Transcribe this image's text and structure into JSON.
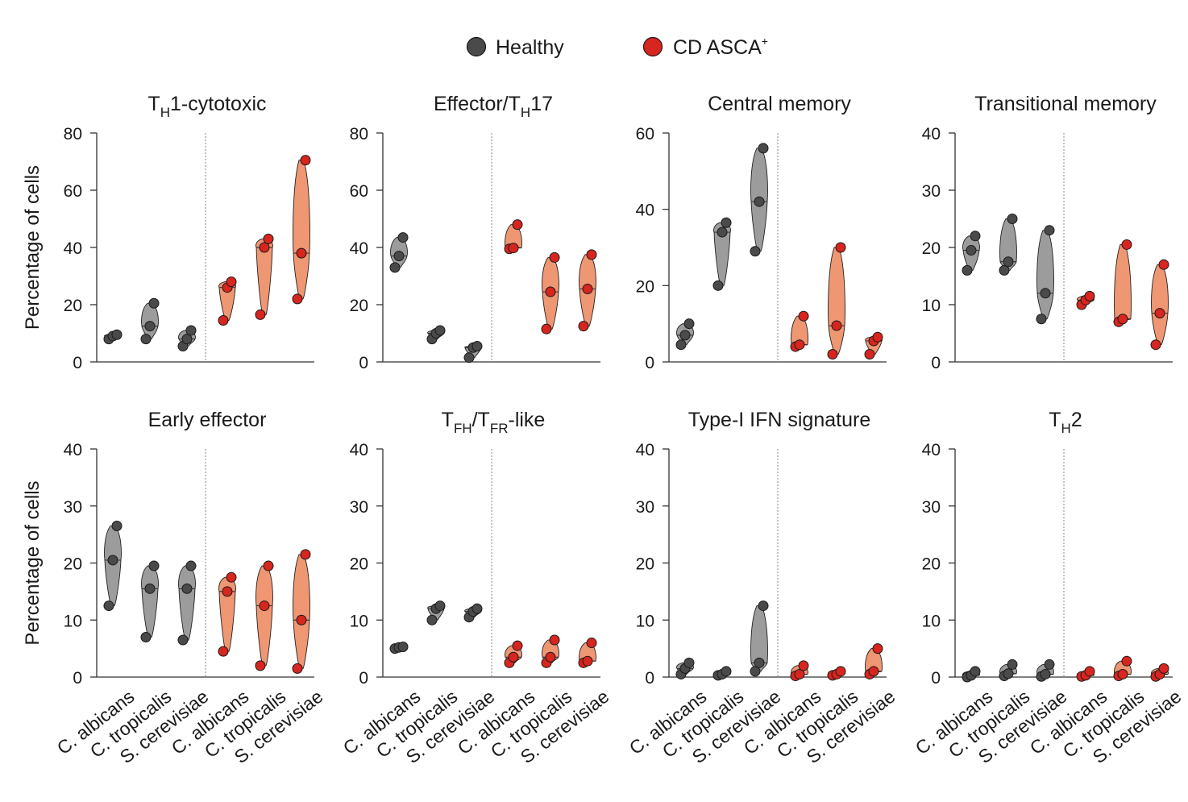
{
  "legend": {
    "healthy_label": "Healthy",
    "cd_label": "CD ASCA",
    "cd_sup": "+",
    "healthy_color": "#4a4a4a",
    "cd_color": "#d7251f"
  },
  "colors": {
    "healthy_fill": "#9c9c9c",
    "cd_fill": "#ef9673",
    "axis": "#333333",
    "divider": "#888888"
  },
  "chart_data": [
    {
      "type": "violin",
      "title_main": "T",
      "title_sub": "H",
      "title_rest": "1-cytotoxic",
      "ylabel": "Percentage of cells",
      "ylim": [
        0,
        80
      ],
      "yticks": [
        0,
        20,
        40,
        60,
        80
      ],
      "groups": [
        "Healthy",
        "CD ASCA+"
      ],
      "categories": [
        "C. albicans",
        "C. tropicalis",
        "S. cerevisiae"
      ],
      "series": [
        {
          "name": "Healthy",
          "values": [
            [
              8,
              9,
              9.5
            ],
            [
              8,
              12.5,
              20.5
            ],
            [
              5.5,
              8,
              11
            ]
          ]
        },
        {
          "name": "CD ASCA+",
          "values": [
            [
              14.5,
              26,
              28
            ],
            [
              16.5,
              40,
              43
            ],
            [
              22,
              38,
              70.5
            ]
          ]
        }
      ]
    },
    {
      "type": "violin",
      "title_main": "Effector/T",
      "title_sub": "H",
      "title_rest": "17",
      "ylabel": "",
      "ylim": [
        0,
        80
      ],
      "yticks": [
        0,
        20,
        40,
        60,
        80
      ],
      "groups": [
        "Healthy",
        "CD ASCA+"
      ],
      "categories": [
        "C. albicans",
        "C. tropicalis",
        "S. cerevisiae"
      ],
      "series": [
        {
          "name": "Healthy",
          "values": [
            [
              33,
              37,
              43.5
            ],
            [
              8,
              10,
              11
            ],
            [
              1.5,
              5,
              5.5
            ]
          ]
        },
        {
          "name": "CD ASCA+",
          "values": [
            [
              39.5,
              39.8,
              48
            ],
            [
              11.5,
              24.5,
              36.5
            ],
            [
              12.5,
              25.5,
              37.5
            ]
          ]
        }
      ]
    },
    {
      "type": "violin",
      "title_main": "Central memory",
      "title_sub": "",
      "title_rest": "",
      "ylabel": "",
      "ylim": [
        0,
        60
      ],
      "yticks": [
        0,
        20,
        40,
        60
      ],
      "groups": [
        "Healthy",
        "CD ASCA+"
      ],
      "categories": [
        "C. albicans",
        "C. tropicalis",
        "S. cerevisiae"
      ],
      "series": [
        {
          "name": "Healthy",
          "values": [
            [
              4.5,
              7,
              10
            ],
            [
              20,
              34,
              36.5
            ],
            [
              29,
              42,
              56
            ]
          ]
        },
        {
          "name": "CD ASCA+",
          "values": [
            [
              4,
              4.5,
              12
            ],
            [
              2,
              9.5,
              30
            ],
            [
              2,
              5.5,
              6.5
            ]
          ]
        }
      ]
    },
    {
      "type": "violin",
      "title_main": "Transitional memory",
      "title_sub": "",
      "title_rest": "",
      "ylabel": "",
      "ylim": [
        0,
        40
      ],
      "yticks": [
        0,
        10,
        20,
        30,
        40
      ],
      "groups": [
        "Healthy",
        "CD ASCA+"
      ],
      "categories": [
        "C. albicans",
        "C. tropicalis",
        "S. cerevisiae"
      ],
      "series": [
        {
          "name": "Healthy",
          "values": [
            [
              16,
              19.5,
              22
            ],
            [
              16,
              17.5,
              25
            ],
            [
              7.5,
              12,
              23
            ]
          ]
        },
        {
          "name": "CD ASCA+",
          "values": [
            [
              10,
              10.8,
              11.5
            ],
            [
              7,
              7.5,
              20.5
            ],
            [
              3,
              8.5,
              17
            ]
          ]
        }
      ]
    },
    {
      "type": "violin",
      "title_main": "Early effector",
      "title_sub": "",
      "title_rest": "",
      "ylabel": "Percentage of cells",
      "ylim": [
        0,
        40
      ],
      "yticks": [
        0,
        10,
        20,
        30,
        40
      ],
      "groups": [
        "Healthy",
        "CD ASCA+"
      ],
      "categories": [
        "C. albicans",
        "C. tropicalis",
        "S. cerevisiae"
      ],
      "series": [
        {
          "name": "Healthy",
          "values": [
            [
              12.5,
              20.5,
              26.5
            ],
            [
              7,
              15.5,
              19.5
            ],
            [
              6.5,
              15.5,
              19.5
            ]
          ]
        },
        {
          "name": "CD ASCA+",
          "values": [
            [
              4.5,
              15,
              17.5
            ],
            [
              2,
              12.5,
              19.5
            ],
            [
              1.5,
              10,
              21.5
            ]
          ]
        }
      ]
    },
    {
      "type": "violin",
      "title_main": "T",
      "title_sub": "FH",
      "title_rest": "/T",
      "title_sub2": "FR",
      "title_rest2": "-like",
      "ylabel": "",
      "ylim": [
        0,
        40
      ],
      "yticks": [
        0,
        10,
        20,
        30,
        40
      ],
      "groups": [
        "Healthy",
        "CD ASCA+"
      ],
      "categories": [
        "C. albicans",
        "C. tropicalis",
        "S. cerevisiae"
      ],
      "series": [
        {
          "name": "Healthy",
          "values": [
            [
              5,
              5.2,
              5.3
            ],
            [
              10,
              12,
              12.5
            ],
            [
              10.5,
              11.5,
              12
            ]
          ]
        },
        {
          "name": "CD ASCA+",
          "values": [
            [
              2.5,
              3.5,
              5.5
            ],
            [
              2.5,
              3.5,
              6.5
            ],
            [
              2.5,
              2.8,
              6
            ]
          ]
        }
      ]
    },
    {
      "type": "violin",
      "title_main": "Type-I IFN signature",
      "title_sub": "",
      "title_rest": "",
      "ylabel": "",
      "ylim": [
        0,
        40
      ],
      "yticks": [
        0,
        10,
        20,
        30,
        40
      ],
      "groups": [
        "Healthy",
        "CD ASCA+"
      ],
      "categories": [
        "C. albicans",
        "C. tropicalis",
        "S. cerevisiae"
      ],
      "series": [
        {
          "name": "Healthy",
          "values": [
            [
              0.5,
              1.5,
              2.5
            ],
            [
              0.3,
              0.5,
              1
            ],
            [
              1,
              2.5,
              12.5
            ]
          ]
        },
        {
          "name": "CD ASCA+",
          "values": [
            [
              0.2,
              0.5,
              2
            ],
            [
              0.3,
              0.5,
              1
            ],
            [
              0.5,
              1,
              5
            ]
          ]
        }
      ]
    },
    {
      "type": "violin",
      "title_main": "T",
      "title_sub": "H",
      "title_rest": "2",
      "ylabel": "",
      "ylim": [
        0,
        40
      ],
      "yticks": [
        0,
        10,
        20,
        30,
        40
      ],
      "groups": [
        "Healthy",
        "CD ASCA+"
      ],
      "categories": [
        "C. albicans",
        "C. tropicalis",
        "S. cerevisiae"
      ],
      "series": [
        {
          "name": "Healthy",
          "values": [
            [
              0,
              0.3,
              1
            ],
            [
              0.2,
              0.6,
              2.2
            ],
            [
              0.1,
              0.5,
              2.2
            ]
          ]
        },
        {
          "name": "CD ASCA+",
          "values": [
            [
              0.1,
              0.3,
              1
            ],
            [
              0.2,
              0.5,
              2.8
            ],
            [
              0.1,
              0.5,
              1.5
            ]
          ]
        }
      ]
    }
  ]
}
